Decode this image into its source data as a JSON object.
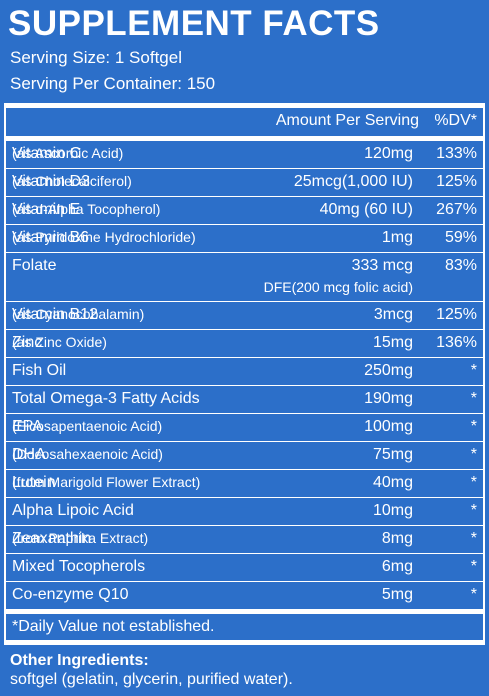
{
  "header": {
    "title": "SUPPLEMENT FACTS",
    "serving_size": "Serving Size: 1 Softgel",
    "servings_per_container": "Serving Per Container: 150"
  },
  "table": {
    "column_amount": "Amount Per Serving",
    "column_dv": "%DV*",
    "rows": [
      {
        "name": "Vitamin C",
        "detail": "(as Ascorbic Acid)",
        "amount": "120mg",
        "dv": "133%"
      },
      {
        "name": "Vitamin D3",
        "detail": "(as Cholecalciferol)",
        "amount": "25mcg(1,000 IU)",
        "dv": "125%"
      },
      {
        "name": "Vitamin E",
        "detail": "(as d-Alpha Tocopherol)",
        "amount": "40mg (60 IU)",
        "dv": "267%"
      },
      {
        "name": "Vitamin B6",
        "detail": "(as Pyridoxine Hydrochloride)",
        "amount": "1mg",
        "dv": "59%"
      },
      {
        "name": "Folate",
        "amount": "333 mcg",
        "dv": "83%",
        "note": "DFE(200 mcg folic acid)"
      },
      {
        "name": "Vitamin B12",
        "detail": "(as Cyanocobalamin)",
        "amount": "3mcg",
        "dv": "125%"
      },
      {
        "name": "Zinc",
        "detail": "(as Zinc Oxide)",
        "amount": "15mg",
        "dv": "136%"
      },
      {
        "name": "Fish Oil",
        "amount": "250mg",
        "dv": "*"
      },
      {
        "name": "Total Omega-3 Fatty Acids",
        "amount": "190mg",
        "dv": "*"
      },
      {
        "name": "EPA",
        "detail": "(Eicosapentaenoic Acid)",
        "amount": "100mg",
        "dv": "*"
      },
      {
        "name": "DHA",
        "detail": "(Docosahexaenoic Acid)",
        "amount": "75mg",
        "dv": "*"
      },
      {
        "name": "Lutein",
        "detail": "(from Marigold Flower Extract)",
        "amount": "40mg",
        "dv": "*"
      },
      {
        "name": "Alpha Lipoic Acid",
        "amount": "10mg",
        "dv": "*"
      },
      {
        "name": "Zeaxanthin",
        "detail": "(from Paprika Extract)",
        "amount": "8mg",
        "dv": "*"
      },
      {
        "name": "Mixed Tocopherols",
        "amount": "6mg",
        "dv": "*"
      },
      {
        "name": "Co-enzyme Q10",
        "amount": "5mg",
        "dv": "*"
      }
    ],
    "footnote": "*Daily Value not established."
  },
  "other_ingredients": {
    "heading": "Other Ingredients:",
    "text": "softgel (gelatin, glycerin, purified water)."
  }
}
